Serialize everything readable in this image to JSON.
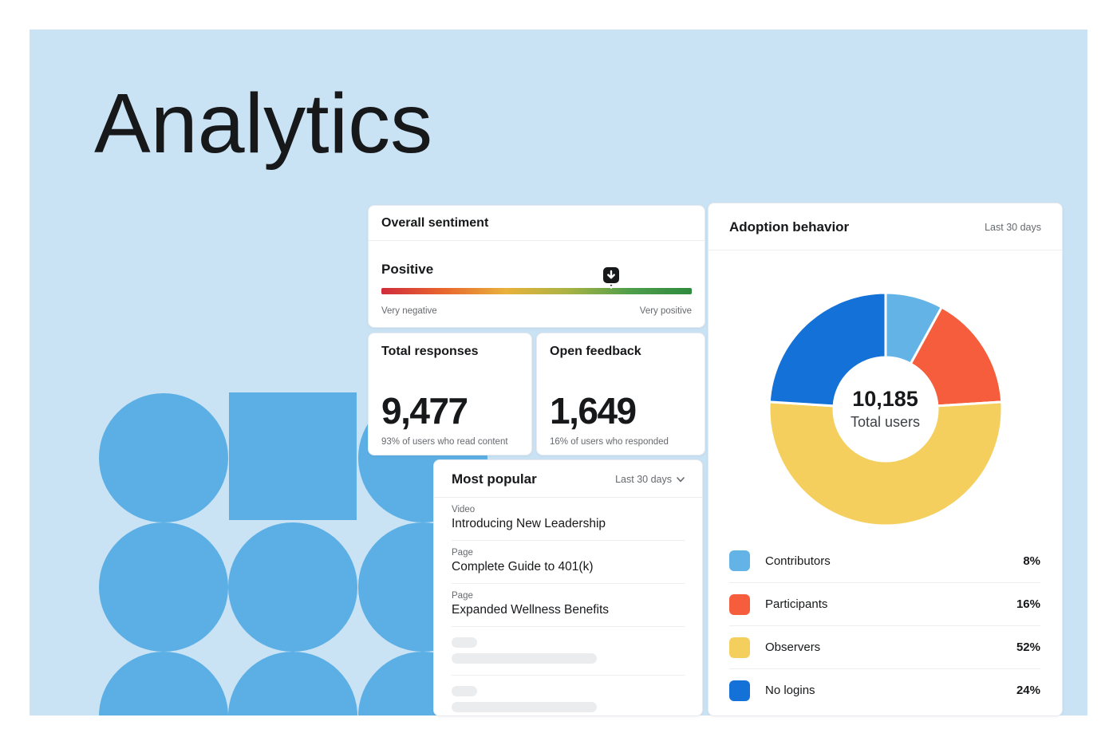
{
  "page": {
    "title": "Analytics"
  },
  "colors": {
    "panel_background": "#c9e2f4",
    "decor_shape_blue": "#5bafe4",
    "card_border": "#e7eaee",
    "divider": "#ededf0",
    "text_primary": "#17181a",
    "text_secondary": "#66696e",
    "skeleton": "#ebecee",
    "marker_black": "#17181a",
    "sentiment_gradient_stops": [
      "#d02c3c",
      "#e8662e",
      "#e9b13c",
      "#a9b344",
      "#4f9e4b",
      "#2e8b3e"
    ]
  },
  "sentiment": {
    "title": "Overall sentiment",
    "value_label": "Positive",
    "scale_min_label": "Very negative",
    "scale_max_label": "Very positive",
    "marker_position_pct": 74
  },
  "stats": [
    {
      "title": "Total responses",
      "value": "9,477",
      "caption": "93% of users who read content"
    },
    {
      "title": "Open feedback",
      "value": "1,649",
      "caption": "16% of users who responded"
    }
  ],
  "most_popular": {
    "title": "Most popular",
    "range_label": "Last 30 days",
    "items": [
      {
        "type": "Video",
        "title": "Introducing New Leadership"
      },
      {
        "type": "Page",
        "title": "Complete Guide to 401(k)"
      },
      {
        "type": "Page",
        "title": "Expanded Wellness Benefits"
      }
    ],
    "skeleton_rows": 2
  },
  "adoption": {
    "title": "Adoption behavior",
    "range_label": "Last 30 days"
  },
  "chart_data": {
    "type": "pie",
    "subtype": "donut",
    "title": "Adoption behavior",
    "range": "Last 30 days",
    "direction": "clockwise",
    "start_angle_deg": 0,
    "legend_position": "bottom",
    "center": {
      "value": "10,185",
      "label": "Total users"
    },
    "segments": [
      {
        "label": "Contributors",
        "value": 8,
        "pct_label": "8%",
        "color": "#63b3e7"
      },
      {
        "label": "Participants",
        "value": 16,
        "pct_label": "16%",
        "color": "#f65d3d"
      },
      {
        "label": "Observers",
        "value": 52,
        "pct_label": "52%",
        "color": "#f5cf5e"
      },
      {
        "label": "No logins",
        "value": 24,
        "pct_label": "24%",
        "color": "#1471d8"
      }
    ]
  }
}
